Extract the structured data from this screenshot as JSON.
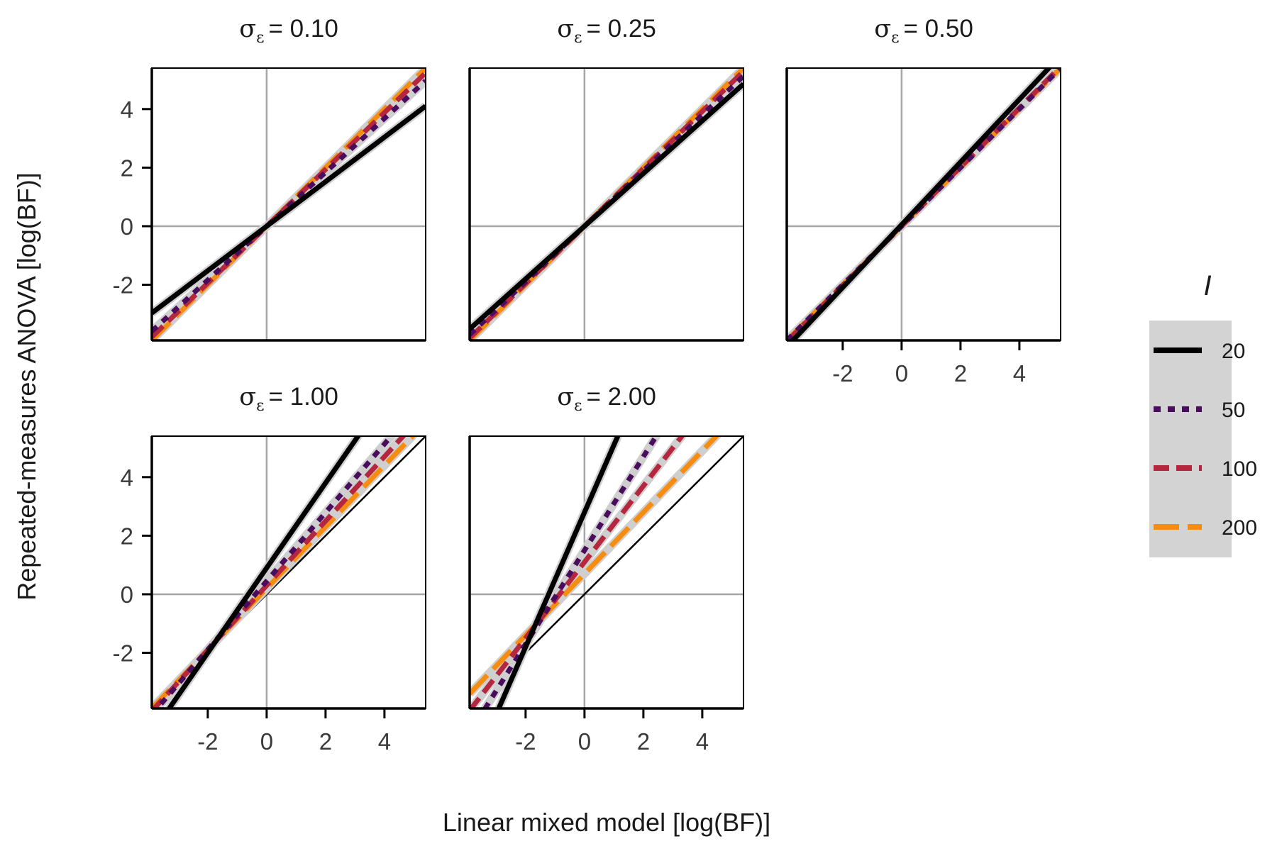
{
  "figure": {
    "xlabel": "Linear mixed model [log(BF)]",
    "ylabel": "Repeated-measures ANOVA [log(BF)]"
  },
  "legend": {
    "title": "I",
    "entries": [
      {
        "label": "20",
        "color": "#000000",
        "dash": "solid"
      },
      {
        "label": "50",
        "color": "#4a0c5c",
        "dash": "dotted"
      },
      {
        "label": "100",
        "color": "#b5273f",
        "dash": "dashed"
      },
      {
        "label": "200",
        "color": "#f58e10",
        "dash": "longdash"
      }
    ]
  },
  "chart_data": [
    {
      "type": "line",
      "title_prefix": "σ",
      "title_subscript": "ε",
      "title_value": "= 0.10",
      "xlim": [
        -3.9,
        5.4
      ],
      "ylim": [
        -3.9,
        5.4
      ],
      "xticks": [
        -2,
        0,
        2,
        4
      ],
      "yticks": [
        -2,
        0,
        2,
        4
      ],
      "x_ticklabels": [
        "-2",
        "0",
        "2",
        "4"
      ],
      "y_ticklabels": [
        "-2",
        "0",
        "2",
        "4"
      ],
      "show_xticklabels": false,
      "show_yticklabels": true,
      "reference_line": "y = x",
      "series": [
        {
          "name": "20",
          "slope": 0.76,
          "intercept": 0.0
        },
        {
          "name": "50",
          "slope": 0.92,
          "intercept": 0.0
        },
        {
          "name": "100",
          "slope": 0.97,
          "intercept": 0.0
        },
        {
          "name": "200",
          "slope": 1.0,
          "intercept": 0.0
        }
      ]
    },
    {
      "type": "line",
      "title_prefix": "σ",
      "title_subscript": "ε",
      "title_value": "= 0.25",
      "xlim": [
        -3.9,
        5.4
      ],
      "ylim": [
        -3.9,
        5.4
      ],
      "xticks": [
        -2,
        0,
        2,
        4
      ],
      "yticks": [
        -2,
        0,
        2,
        4
      ],
      "x_ticklabels": [
        "-2",
        "0",
        "2",
        "4"
      ],
      "y_ticklabels": [
        "-2",
        "0",
        "2",
        "4"
      ],
      "show_xticklabels": false,
      "show_yticklabels": false,
      "reference_line": "y = x",
      "series": [
        {
          "name": "20",
          "slope": 0.9,
          "intercept": 0.0
        },
        {
          "name": "50",
          "slope": 0.95,
          "intercept": 0.0
        },
        {
          "name": "100",
          "slope": 0.98,
          "intercept": 0.0
        },
        {
          "name": "200",
          "slope": 1.0,
          "intercept": 0.0
        }
      ]
    },
    {
      "type": "line",
      "title_prefix": "σ",
      "title_subscript": "ε",
      "title_value": "= 0.50",
      "xlim": [
        -3.9,
        5.4
      ],
      "ylim": [
        -3.9,
        5.4
      ],
      "xticks": [
        -2,
        0,
        2,
        4
      ],
      "yticks": [
        -2,
        0,
        2,
        4
      ],
      "x_ticklabels": [
        "-2",
        "0",
        "2",
        "4"
      ],
      "y_ticklabels": [
        "-2",
        "0",
        "2",
        "4"
      ],
      "show_xticklabels": true,
      "show_yticklabels": false,
      "reference_line": "y = x",
      "series": [
        {
          "name": "20",
          "slope": 1.07,
          "intercept": 0.05
        },
        {
          "name": "50",
          "slope": 1.0,
          "intercept": 0.0
        },
        {
          "name": "100",
          "slope": 1.01,
          "intercept": 0.0
        },
        {
          "name": "200",
          "slope": 1.0,
          "intercept": 0.0
        }
      ]
    },
    {
      "type": "line",
      "title_prefix": "σ",
      "title_subscript": "ε",
      "title_value": "= 1.00",
      "xlim": [
        -3.9,
        5.4
      ],
      "ylim": [
        -3.9,
        5.4
      ],
      "xticks": [
        -2,
        0,
        2,
        4
      ],
      "yticks": [
        -2,
        0,
        2,
        4
      ],
      "x_ticklabels": [
        "-2",
        "0",
        "2",
        "4"
      ],
      "y_ticklabels": [
        "-2",
        "0",
        "2",
        "4"
      ],
      "show_xticklabels": true,
      "show_yticklabels": true,
      "reference_line": "y = x",
      "series": [
        {
          "name": "20",
          "slope": 1.45,
          "intercept": 0.9
        },
        {
          "name": "50",
          "slope": 1.17,
          "intercept": 0.45
        },
        {
          "name": "100",
          "slope": 1.1,
          "intercept": 0.3
        },
        {
          "name": "200",
          "slope": 1.05,
          "intercept": 0.2
        }
      ]
    },
    {
      "type": "line",
      "title_prefix": "σ",
      "title_subscript": "ε",
      "title_value": "= 2.00",
      "xlim": [
        -3.9,
        5.4
      ],
      "ylim": [
        -3.9,
        5.4
      ],
      "xticks": [
        -2,
        0,
        2,
        4
      ],
      "yticks": [
        -2,
        0,
        2,
        4
      ],
      "x_ticklabels": [
        "-2",
        "0",
        "2",
        "4"
      ],
      "y_ticklabels": [
        "-2",
        "0",
        "2",
        "4"
      ],
      "show_xticklabels": true,
      "show_yticklabels": false,
      "reference_line": "y = x",
      "series": [
        {
          "name": "20",
          "slope": 2.3,
          "intercept": 2.8
        },
        {
          "name": "50",
          "slope": 1.6,
          "intercept": 1.5
        },
        {
          "name": "100",
          "slope": 1.3,
          "intercept": 1.1
        },
        {
          "name": "200",
          "slope": 1.05,
          "intercept": 0.7
        }
      ]
    }
  ]
}
